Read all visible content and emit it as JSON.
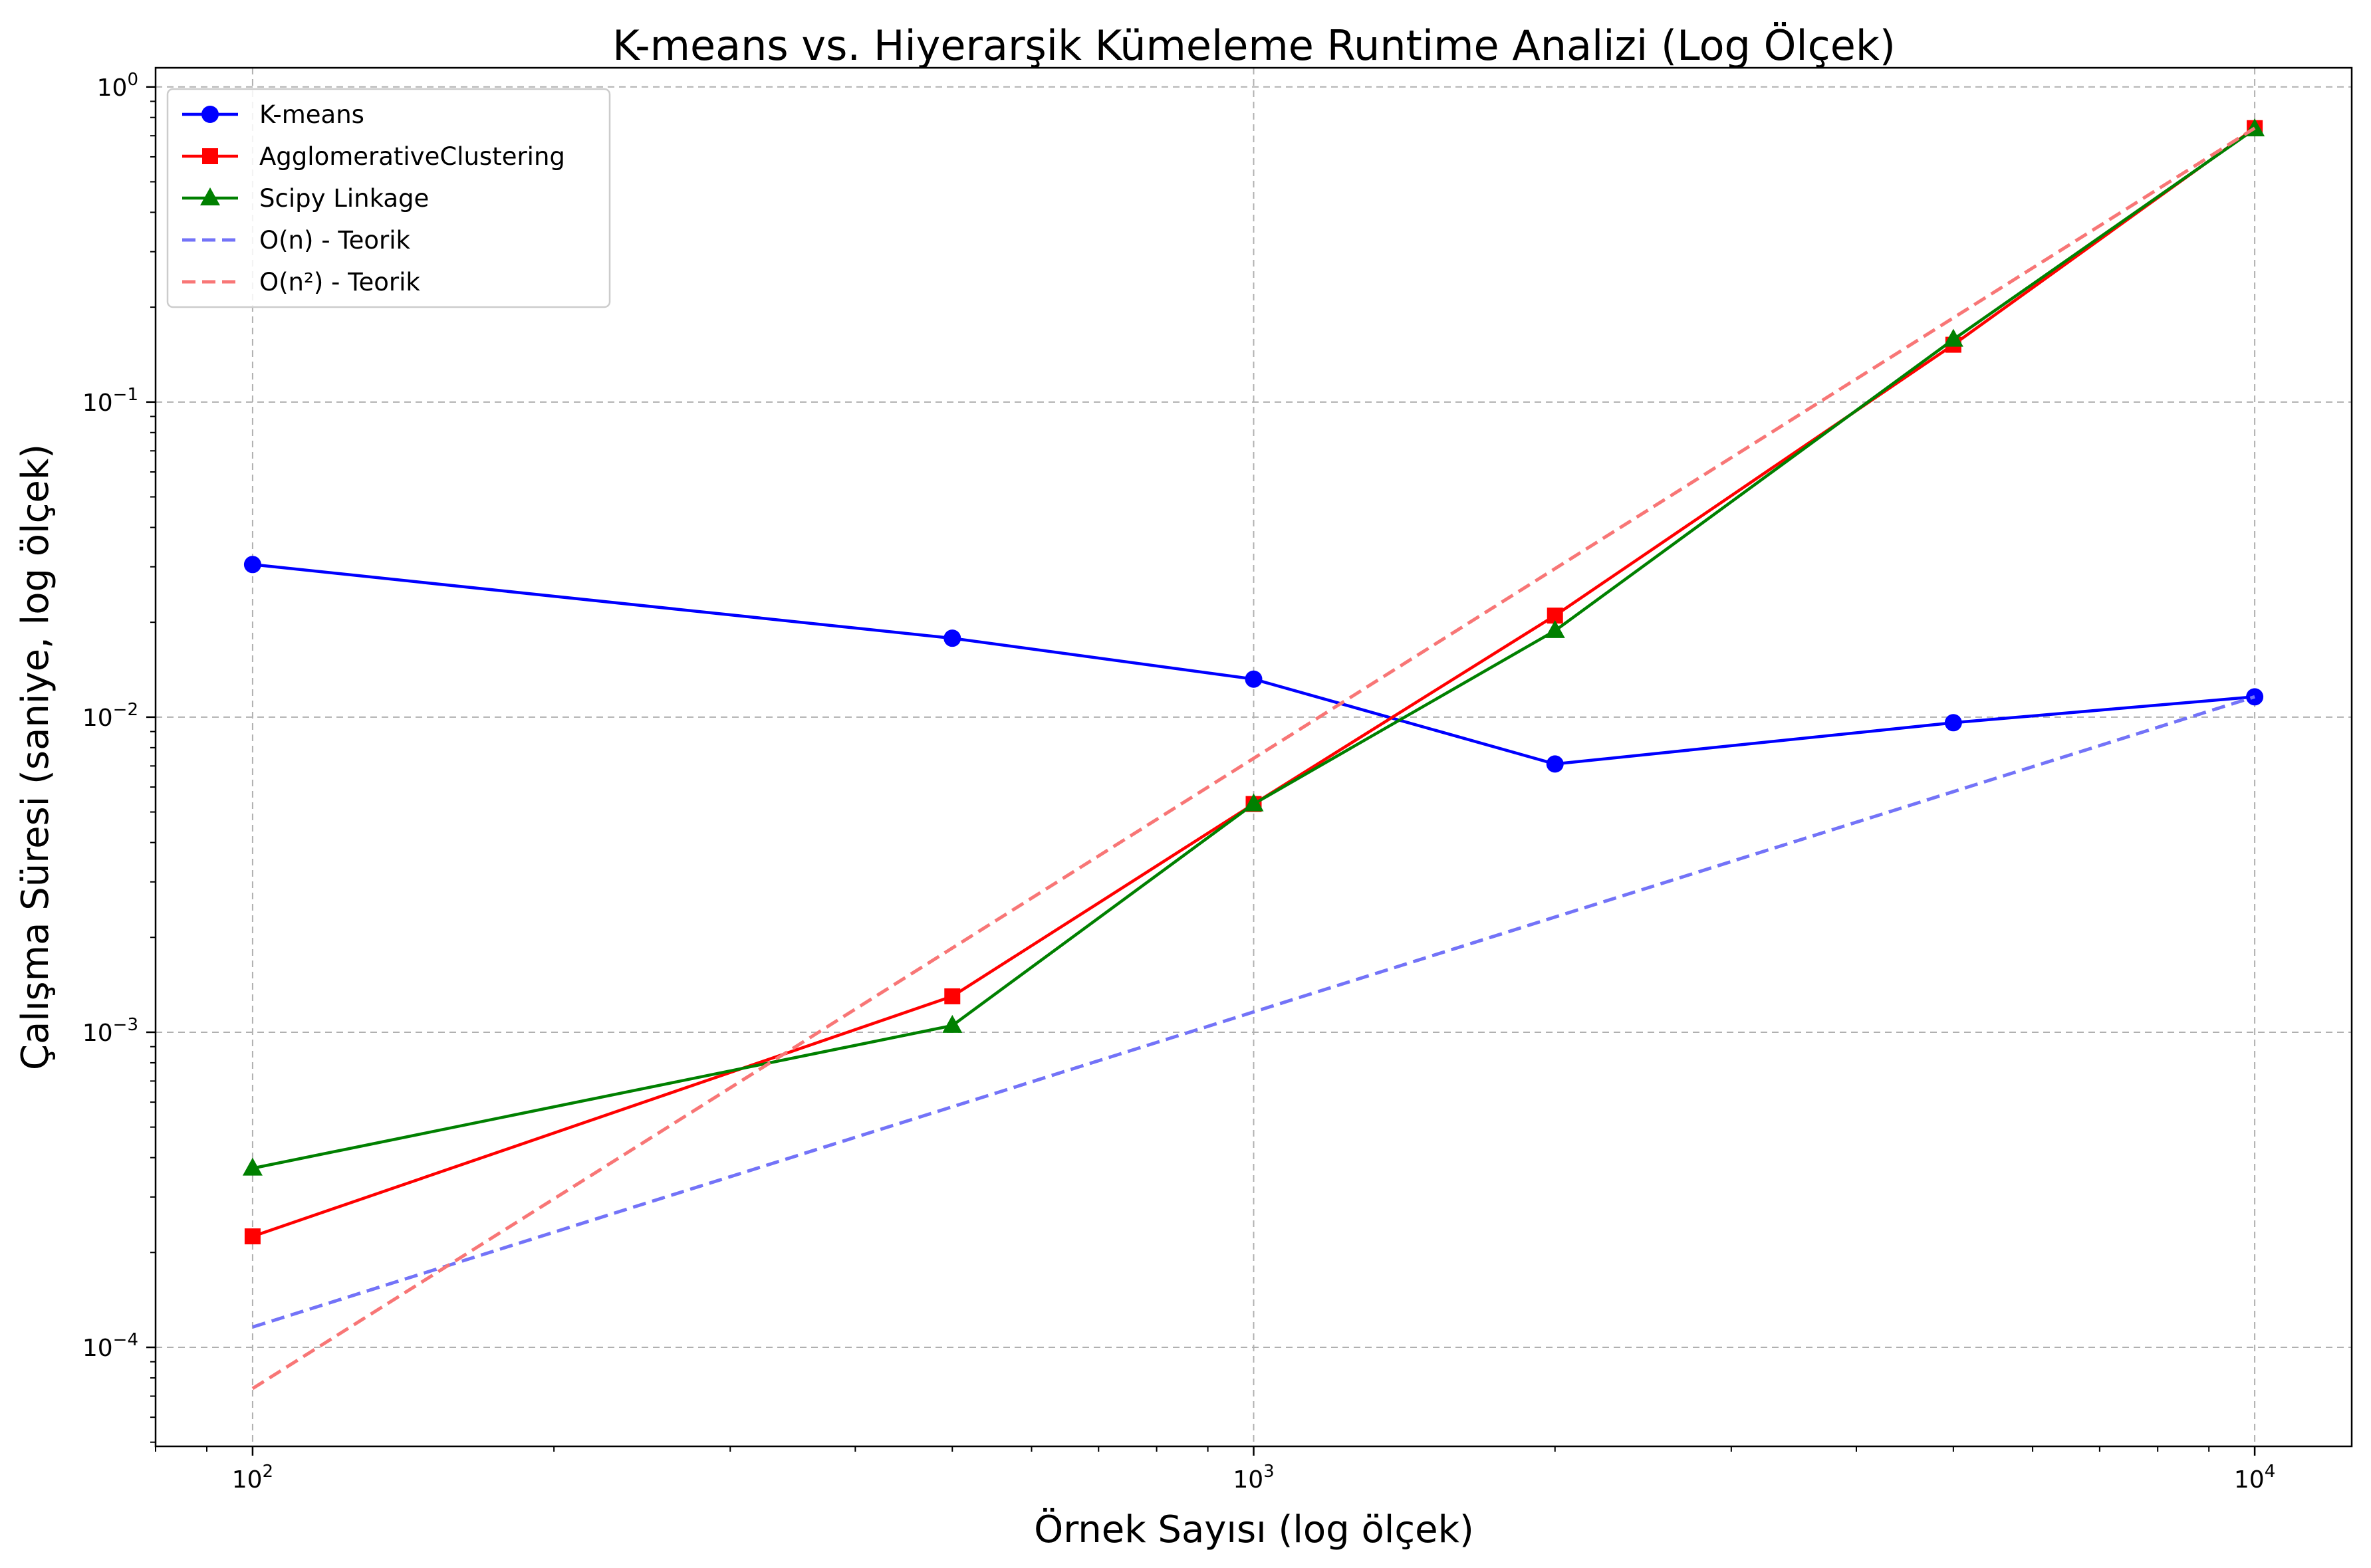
{
  "chart_data": {
    "type": "line",
    "title": "K-means vs. Hiyerarşik Kümeleme Runtime Analizi (Log Ölçek)",
    "xlabel": "Örnek Sayısı (log ölçek)",
    "ylabel": "Çalışma Süresi (saniye, log ölçek)",
    "xscale": "log",
    "yscale": "log",
    "xlim": [
      80,
      12500
    ],
    "ylim": [
      4.85e-05,
      1.15
    ],
    "x_ticks": [
      {
        "base": "10",
        "exp": "2",
        "value": 100
      },
      {
        "base": "10",
        "exp": "3",
        "value": 1000
      },
      {
        "base": "10",
        "exp": "4",
        "value": 10000
      }
    ],
    "y_ticks": [
      {
        "base": "10",
        "exp": "−4",
        "value": 0.0001
      },
      {
        "base": "10",
        "exp": "−3",
        "value": 0.001
      },
      {
        "base": "10",
        "exp": "−2",
        "value": 0.01
      },
      {
        "base": "10",
        "exp": "−1",
        "value": 0.1
      },
      {
        "base": "10",
        "exp": "0",
        "value": 1
      }
    ],
    "grid": true,
    "legend_position": "top-left",
    "series": [
      {
        "name": "K-means",
        "color": "#0000ff",
        "marker": "circle",
        "dash": "solid",
        "x": [
          100,
          500,
          1000,
          2000,
          5000,
          10000
        ],
        "y": [
          0.0305,
          0.0178,
          0.0132,
          0.0071,
          0.0096,
          0.0116
        ]
      },
      {
        "name": "AgglomerativeClustering",
        "color": "#ff0000",
        "marker": "square",
        "dash": "solid",
        "x": [
          100,
          500,
          1000,
          2000,
          5000,
          10000
        ],
        "y": [
          0.000225,
          0.0013,
          0.0053,
          0.021,
          0.152,
          0.74
        ]
      },
      {
        "name": "Scipy Linkage",
        "color": "#008000",
        "marker": "triangle",
        "dash": "solid",
        "x": [
          100,
          500,
          1000,
          2000,
          5000,
          10000
        ],
        "y": [
          0.00037,
          0.00105,
          0.0053,
          0.0188,
          0.158,
          0.735
        ]
      },
      {
        "name": "O(n) - Teorik",
        "color": "#7373f8",
        "marker": "none",
        "dash": "dashed",
        "x": [
          100,
          10000
        ],
        "y": [
          0.000116,
          0.0116
        ]
      },
      {
        "name": "O(n²) - Teorik",
        "color": "#f87676",
        "marker": "none",
        "dash": "dashed",
        "x": [
          100,
          10000
        ],
        "y": [
          7.4e-05,
          0.74
        ]
      }
    ]
  }
}
